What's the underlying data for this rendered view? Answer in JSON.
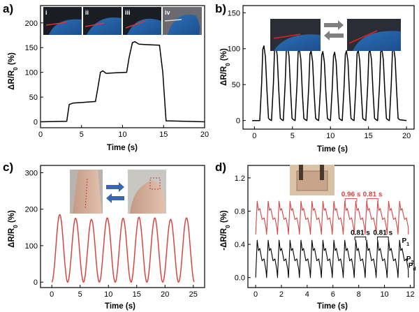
{
  "colors": {
    "black": "#000000",
    "red": "#d8453f",
    "arrow_grey": "#7f7f7f",
    "arrow_blue": "#3a66b0"
  },
  "chart_data": [
    {
      "panel": "a)",
      "type": "line",
      "xlabel": "Time (s)",
      "ylabel": "ΔR/R0 (%)",
      "xlim": [
        0,
        20
      ],
      "ylim": [
        -12,
        235
      ],
      "xticks": [
        0,
        5,
        10,
        15,
        20
      ],
      "yticks": [
        0,
        50,
        100,
        150,
        200
      ],
      "photo_labels": [
        "i",
        "ii",
        "iii",
        "iv"
      ],
      "series": [
        {
          "color": "#000000",
          "x": [
            0,
            3.2,
            3.5,
            4,
            5,
            6.7,
            7,
            7.3,
            7.6,
            8,
            9,
            10.5,
            10.8,
            11.2,
            11.5,
            12,
            13,
            14.5,
            14.9,
            15.3,
            20
          ],
          "y": [
            0,
            1,
            35,
            38,
            39,
            41,
            70,
            100,
            103,
            98,
            99,
            100,
            130,
            160,
            162,
            157,
            156,
            155,
            100,
            2,
            0
          ]
        }
      ]
    },
    {
      "panel": "b)",
      "type": "line",
      "xlabel": "Time (s)",
      "ylabel": "ΔR/R0 (%)",
      "xlim": [
        -1.5,
        21
      ],
      "ylim": [
        -12,
        160
      ],
      "xticks": [
        0,
        5,
        10,
        15,
        20
      ],
      "yticks": [
        0,
        50,
        100,
        150
      ],
      "cycles": {
        "start": 0.7,
        "period": 1.55,
        "count": 12,
        "amplitudes": [
          104,
          106,
          105,
          100,
          97,
          96,
          95,
          97,
          98,
          99,
          100,
          102
        ]
      }
    },
    {
      "panel": "c)",
      "type": "line",
      "xlabel": "Time (s)",
      "ylabel": "ΔR/R0 (%)",
      "xlim": [
        -2,
        27
      ],
      "ylim": [
        -15,
        320
      ],
      "xticks": [
        0,
        5,
        10,
        15,
        20,
        25
      ],
      "yticks": [
        0,
        100,
        200,
        300
      ],
      "wave": {
        "color": "#d8453f",
        "period": 2.8,
        "count": 9,
        "amplitudes": [
          185,
          175,
          172,
          176,
          175,
          178,
          176,
          172,
          176
        ]
      }
    },
    {
      "panel": "d)",
      "type": "line",
      "xlabel": "Time (s)",
      "ylabel": "-ΔR/R0 (%)",
      "xlim": [
        -0.6,
        12.3
      ],
      "ylim": [
        -0.12,
        1.35
      ],
      "xticks": [
        0,
        2,
        4,
        6,
        8,
        10,
        12
      ],
      "yticks": [
        0.0,
        0.4,
        0.8,
        1.2
      ],
      "series": [
        {
          "color": "#d8453f",
          "base": 0.52,
          "peak": 0.92,
          "period": 0.85,
          "start": 0,
          "count": 14
        },
        {
          "color": "#000000",
          "base": 0.0,
          "peak": 0.45,
          "period": 0.85,
          "start": 0,
          "count": 14
        }
      ],
      "annotations": {
        "red_interval_1": "0.96 s",
        "red_interval_2": "0.81 s",
        "black_interval_1": "0.81 s",
        "black_interval_2": "0.81 s",
        "p1": "P",
        "p1_sub": "1",
        "p2": "P",
        "p2_sub": "2",
        "pd": "P",
        "pd_sub": "d"
      }
    }
  ],
  "labels": {
    "a_title": "a)",
    "b_title": "b)",
    "c_title": "c)",
    "d_title": "d)",
    "ylabel_a_main": "ΔR/R",
    "ylabel_a_sub": "0",
    "ylabel_a_end": " (%)",
    "ylabel_b_main": "ΔR/R",
    "ylabel_b_sub": "0",
    "ylabel_b_end": " (%)",
    "ylabel_c_main": "ΔR/R",
    "ylabel_c_sub": "0",
    "ylabel_c_end": " (%)",
    "ylabel_d_main": "-ΔR/R",
    "ylabel_d_sub": "0",
    "ylabel_d_end": " (%)",
    "xlabel": "Time (s)"
  }
}
